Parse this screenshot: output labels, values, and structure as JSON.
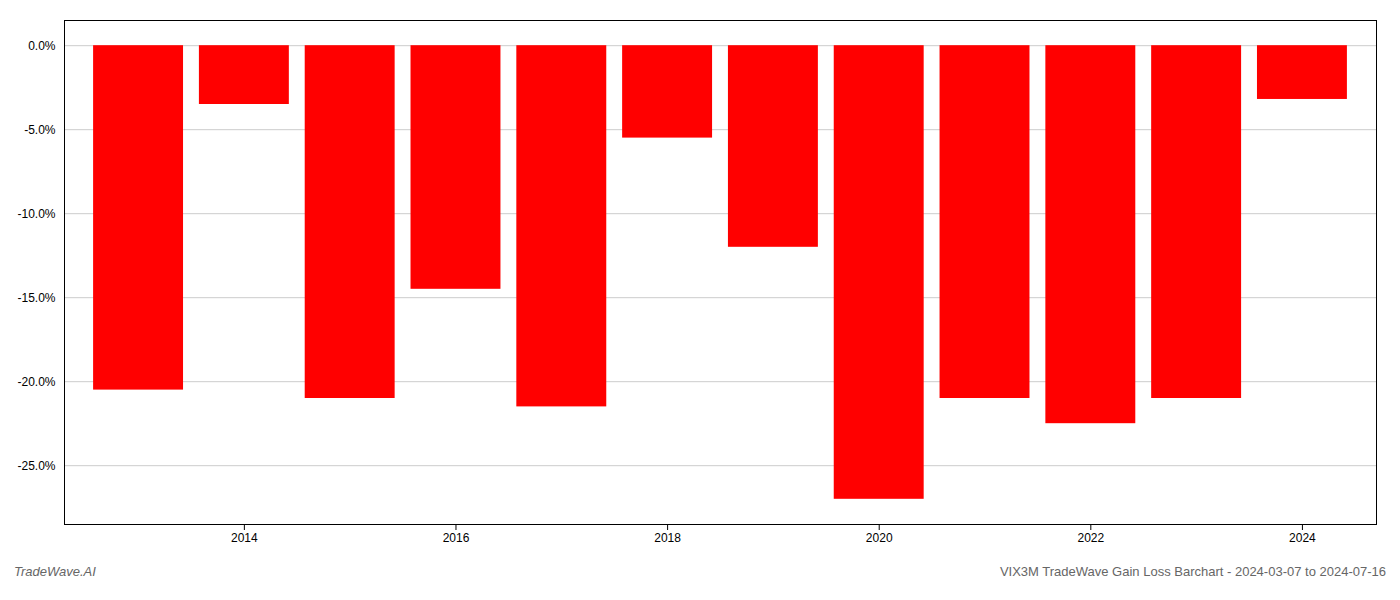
{
  "chart_data": {
    "type": "bar",
    "x": [
      2013,
      2014,
      2015,
      2016,
      2017,
      2018,
      2019,
      2020,
      2021,
      2022,
      2023,
      2024
    ],
    "values": [
      -20.5,
      -3.5,
      -21.0,
      -14.5,
      -21.5,
      -5.5,
      -12.0,
      -27.0,
      -21.0,
      -22.5,
      -21.0,
      -3.2
    ],
    "color": "#ff0000",
    "xlim": [
      2012.3,
      2024.7
    ],
    "xticks": [
      2014,
      2016,
      2018,
      2020,
      2022,
      2024
    ],
    "ylim": [
      -28.5,
      1.5
    ],
    "yticks": [
      {
        "value": 0.0,
        "label": "0.0%"
      },
      {
        "value": -5.0,
        "label": "-5.0%"
      },
      {
        "value": -10.0,
        "label": "-10.0%"
      },
      {
        "value": -15.0,
        "label": "-15.0%"
      },
      {
        "value": -20.0,
        "label": "-20.0%"
      },
      {
        "value": -25.0,
        "label": "-25.0%"
      }
    ],
    "grid": true,
    "annotations": [
      "TradeWave.AI",
      "VIX3M TradeWave Gain Loss Barchart - 2024-03-07 to 2024-07-16"
    ]
  }
}
